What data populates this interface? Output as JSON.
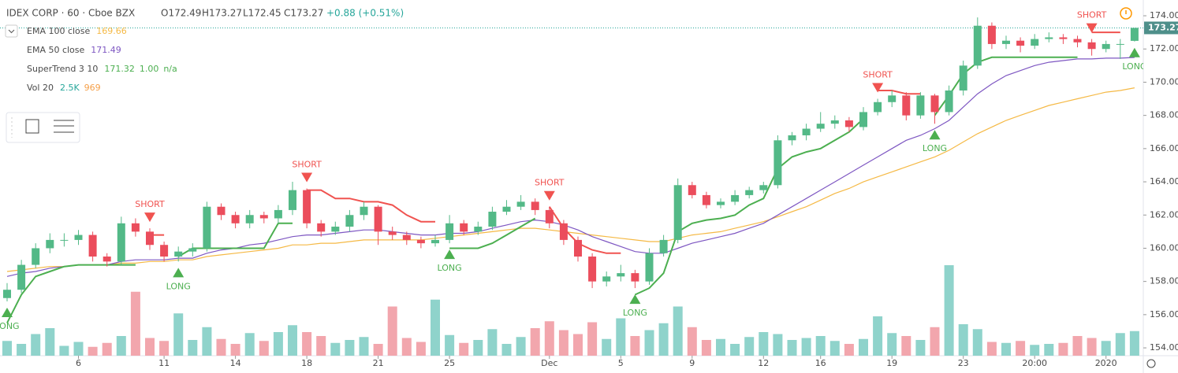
{
  "chart_data": {
    "type": "candlestick",
    "title": "IDEX CORP · 60 · Cboe BZX",
    "ohlc": [
      "O172.49",
      "H173.27",
      "L172.45",
      "C173.27"
    ],
    "change": "+0.88 (+0.51%)",
    "last_price": {
      "value": 173.27,
      "label": "173.27"
    },
    "indicators": [
      {
        "name": "EMA 100 close",
        "values": [
          "169.66"
        ],
        "color": "#f5b945"
      },
      {
        "name": "EMA 50 close",
        "values": [
          "171.49"
        ],
        "color": "#7e57c2"
      },
      {
        "name": "SuperTrend 3 10",
        "values": [
          "171.32",
          "1.00",
          "n/a"
        ],
        "color": "#4caf50"
      },
      {
        "name": "Vol 20",
        "values": [
          "2.5K",
          "969"
        ],
        "color": "#26a69a"
      }
    ],
    "up_color": "#53b987",
    "down_color": "#eb4d5c",
    "vol_up_color": "#8fd3cb",
    "vol_down_color": "#f2a6ad",
    "ylim": [
      152.96,
      174.95
    ],
    "yticks": [
      {
        "value": 154,
        "label": "154.00"
      },
      {
        "value": 156,
        "label": "156.00"
      },
      {
        "value": 158,
        "label": "158.00"
      },
      {
        "value": 160,
        "label": "160.00"
      },
      {
        "value": 162,
        "label": "162.00"
      },
      {
        "value": 164,
        "label": "164.00"
      },
      {
        "value": 166,
        "label": "166.00"
      },
      {
        "value": 168,
        "label": "168.00"
      },
      {
        "value": 170,
        "label": "170.00"
      },
      {
        "value": 172,
        "label": "172.00"
      },
      {
        "value": 174,
        "label": "174.00"
      }
    ],
    "volume_lim": [
      0,
      12000
    ],
    "categories": [
      null,
      null,
      null,
      null,
      null,
      "6",
      null,
      null,
      null,
      null,
      null,
      "11",
      null,
      null,
      null,
      null,
      "14",
      null,
      null,
      null,
      null,
      "18",
      null,
      null,
      null,
      null,
      "21",
      null,
      null,
      null,
      null,
      "25",
      null,
      null,
      null,
      null,
      null,
      null,
      "Dec",
      null,
      null,
      null,
      null,
      "5",
      null,
      null,
      null,
      null,
      "9",
      null,
      null,
      null,
      null,
      "12",
      null,
      null,
      null,
      "16",
      null,
      null,
      null,
      null,
      "19",
      null,
      null,
      null,
      null,
      "23",
      null,
      null,
      null,
      null,
      "20:00",
      null,
      null,
      null,
      null,
      "2020",
      null,
      null
    ],
    "candles": [
      [
        157,
        157.9,
        156.8,
        157.5
      ],
      [
        157.5,
        159.3,
        157.3,
        159
      ],
      [
        159,
        160.3,
        158.8,
        160
      ],
      [
        160,
        160.9,
        159.7,
        160.5
      ],
      [
        160.5,
        160.9,
        160.1,
        160.5
      ],
      [
        160.5,
        161.1,
        160.2,
        160.8
      ],
      [
        160.8,
        161,
        159.2,
        159.5
      ],
      [
        159.5,
        159.7,
        158.9,
        159.2
      ],
      [
        159.2,
        161.9,
        159,
        161.5
      ],
      [
        161.5,
        161.8,
        160.7,
        161
      ],
      [
        161,
        161.2,
        159.9,
        160.2
      ],
      [
        160.2,
        160.4,
        159.2,
        159.5
      ],
      [
        159.5,
        160.1,
        159.2,
        159.8
      ],
      [
        159.8,
        160.3,
        159.5,
        160
      ],
      [
        160,
        162.8,
        159.8,
        162.5
      ],
      [
        162.5,
        162.7,
        161.7,
        162
      ],
      [
        162,
        162.2,
        161.2,
        161.5
      ],
      [
        161.5,
        162.3,
        161.2,
        162
      ],
      [
        162,
        162.2,
        161.5,
        161.8
      ],
      [
        161.8,
        162.6,
        161.5,
        162.3
      ],
      [
        162.3,
        164,
        162,
        163.5
      ],
      [
        163.5,
        163.6,
        161.2,
        161.5
      ],
      [
        161.5,
        161.7,
        160.7,
        161
      ],
      [
        161,
        161.6,
        160.8,
        161.3
      ],
      [
        161.3,
        162.3,
        161,
        162
      ],
      [
        162,
        162.8,
        161.7,
        162.5
      ],
      [
        162.5,
        162.6,
        160.2,
        161
      ],
      [
        161,
        161.3,
        160.5,
        160.8
      ],
      [
        160.8,
        161,
        160.2,
        160.5
      ],
      [
        160.5,
        160.7,
        160,
        160.3
      ],
      [
        160.3,
        160.8,
        160.1,
        160.5
      ],
      [
        160.5,
        162,
        160.3,
        161.5
      ],
      [
        161.5,
        161.7,
        160.8,
        161
      ],
      [
        161,
        161.6,
        160.8,
        161.3
      ],
      [
        161.3,
        162.5,
        161.1,
        162.2
      ],
      [
        162.2,
        162.9,
        162,
        162.5
      ],
      [
        162.5,
        163.2,
        162.3,
        162.8
      ],
      [
        162.8,
        163,
        162,
        162.3
      ],
      [
        162.3,
        162.5,
        161.2,
        161.5
      ],
      [
        161.5,
        161.7,
        160.2,
        160.5
      ],
      [
        160.5,
        160.7,
        159.2,
        159.5
      ],
      [
        159.5,
        159.7,
        157.6,
        158
      ],
      [
        158,
        158.6,
        157.7,
        158.3
      ],
      [
        158.3,
        159,
        158,
        158.5
      ],
      [
        158.5,
        158.7,
        157.6,
        158
      ],
      [
        158,
        160,
        157.8,
        159.7
      ],
      [
        159.7,
        160.8,
        159.5,
        160.5
      ],
      [
        160.5,
        164.2,
        160.3,
        163.8
      ],
      [
        163.8,
        164,
        163,
        163.2
      ],
      [
        163.2,
        163.4,
        162.4,
        162.6
      ],
      [
        162.6,
        163,
        162.4,
        162.8
      ],
      [
        162.8,
        163.5,
        162.6,
        163.2
      ],
      [
        163.2,
        163.7,
        163,
        163.5
      ],
      [
        163.5,
        164,
        163.3,
        163.8
      ],
      [
        163.8,
        166.8,
        163.6,
        166.5
      ],
      [
        166.5,
        167,
        166.2,
        166.8
      ],
      [
        166.8,
        167.5,
        166.5,
        167.2
      ],
      [
        167.2,
        168.2,
        167,
        167.5
      ],
      [
        167.5,
        168,
        167.2,
        167.7
      ],
      [
        167.7,
        167.9,
        167,
        167.3
      ],
      [
        167.3,
        168.5,
        167.1,
        168.2
      ],
      [
        168.2,
        169,
        168,
        168.8
      ],
      [
        168.8,
        169.5,
        168.5,
        169.2
      ],
      [
        169.2,
        169.4,
        167.7,
        168
      ],
      [
        168,
        169.4,
        167.8,
        169.2
      ],
      [
        169.2,
        169.3,
        167.5,
        168.2
      ],
      [
        168.2,
        169.8,
        168,
        169.5
      ],
      [
        169.5,
        171.3,
        169.2,
        171
      ],
      [
        171,
        173.9,
        170.8,
        173.4
      ],
      [
        173.4,
        173.6,
        172,
        172.3
      ],
      [
        172.3,
        172.8,
        172,
        172.5
      ],
      [
        172.5,
        172.7,
        171.8,
        172.2
      ],
      [
        172.2,
        172.9,
        172,
        172.6
      ],
      [
        172.6,
        173,
        172.4,
        172.7
      ],
      [
        172.7,
        172.9,
        172.3,
        172.6
      ],
      [
        172.6,
        172.8,
        172.1,
        172.4
      ],
      [
        172.4,
        172.6,
        171.6,
        172
      ],
      [
        172,
        172.5,
        171.8,
        172.3
      ],
      [
        172.3,
        172.6,
        171.4,
        172.3
      ],
      [
        172.49,
        173.27,
        172.45,
        173.27
      ]
    ],
    "volumes": [
      1500,
      1200,
      2200,
      2800,
      1000,
      1400,
      900,
      1300,
      2000,
      6500,
      1800,
      1500,
      4300,
      1600,
      2900,
      1700,
      1200,
      2300,
      1500,
      2400,
      3100,
      2400,
      2000,
      1300,
      1600,
      1900,
      1200,
      5000,
      1800,
      1400,
      5700,
      2100,
      1300,
      1600,
      2700,
      1200,
      1900,
      2800,
      3500,
      2600,
      2200,
      3400,
      1700,
      3800,
      2000,
      2600,
      3300,
      5000,
      2900,
      1600,
      1700,
      1200,
      1900,
      2400,
      2200,
      1600,
      1800,
      2000,
      1500,
      1200,
      1700,
      4000,
      2300,
      2000,
      1600,
      2900,
      9200,
      3200,
      2700,
      1400,
      1300,
      1500,
      1100,
      1200,
      1300,
      2000,
      1800,
      1500,
      2300,
      2500
    ],
    "ema100": [
      158.6,
      158.7,
      158.8,
      158.9,
      158.9,
      159.0,
      159.0,
      159.0,
      159.1,
      159.1,
      159.2,
      159.2,
      159.3,
      159.3,
      159.5,
      159.6,
      159.7,
      159.8,
      159.9,
      160.0,
      160.2,
      160.2,
      160.3,
      160.3,
      160.4,
      160.5,
      160.5,
      160.5,
      160.5,
      160.5,
      160.6,
      160.7,
      160.8,
      160.9,
      161.0,
      161.1,
      161.2,
      161.2,
      161.1,
      161.0,
      160.9,
      160.8,
      160.7,
      160.6,
      160.5,
      160.4,
      160.4,
      160.6,
      160.8,
      160.9,
      161.0,
      161.2,
      161.4,
      161.6,
      161.9,
      162.2,
      162.5,
      162.9,
      163.3,
      163.6,
      164.0,
      164.3,
      164.6,
      164.9,
      165.2,
      165.5,
      165.9,
      166.4,
      166.9,
      167.3,
      167.7,
      168.0,
      168.3,
      168.6,
      168.8,
      169.0,
      169.2,
      169.4,
      169.5,
      169.66
    ],
    "ema50": [
      158.3,
      158.5,
      158.6,
      158.8,
      158.9,
      159.0,
      159.0,
      159.0,
      159.2,
      159.3,
      159.3,
      159.3,
      159.4,
      159.4,
      159.7,
      159.9,
      160.0,
      160.2,
      160.3,
      160.5,
      160.7,
      160.8,
      160.8,
      160.9,
      161.0,
      161.1,
      161.1,
      161.0,
      160.9,
      160.8,
      160.8,
      160.9,
      160.9,
      161.0,
      161.2,
      161.4,
      161.6,
      161.7,
      161.6,
      161.4,
      161.1,
      160.7,
      160.4,
      160.1,
      159.8,
      159.7,
      159.7,
      160.0,
      160.3,
      160.5,
      160.7,
      160.9,
      161.2,
      161.5,
      162.0,
      162.5,
      163.0,
      163.5,
      164.0,
      164.5,
      165.0,
      165.5,
      166.0,
      166.5,
      166.8,
      167.2,
      167.7,
      168.5,
      169.3,
      169.9,
      170.4,
      170.7,
      171.0,
      171.2,
      171.3,
      171.4,
      171.4,
      171.45,
      171.45,
      171.49
    ],
    "supertrend_long": [
      155.5,
      157.2,
      158.3,
      158.6,
      158.9,
      159.0,
      159.0,
      159.0,
      159.0,
      159.0,
      null,
      null,
      159.5,
      160.0,
      160.0,
      160.0,
      160.0,
      160.0,
      160.0,
      161.5,
      161.5,
      null,
      null,
      null,
      null,
      null,
      null,
      null,
      null,
      null,
      null,
      160.0,
      160.0,
      160.0,
      160.3,
      160.8,
      161.3,
      161.8,
      null,
      null,
      null,
      null,
      null,
      null,
      157.2,
      157.6,
      158.5,
      161.0,
      161.5,
      161.7,
      161.8,
      162.0,
      162.6,
      163.0,
      164.8,
      165.5,
      165.8,
      166.0,
      166.5,
      167.0,
      167.8,
      null,
      null,
      null,
      null,
      168.0,
      169.2,
      170.5,
      171.2,
      171.5,
      171.5,
      171.5,
      171.5,
      171.5,
      171.5,
      171.5,
      null,
      null,
      null,
      171.32
    ],
    "supertrend_short": [
      null,
      null,
      null,
      null,
      null,
      null,
      null,
      null,
      null,
      null,
      160.8,
      160.8,
      null,
      null,
      null,
      null,
      null,
      null,
      null,
      null,
      null,
      163.5,
      163.5,
      163.0,
      163.0,
      162.8,
      162.8,
      162.6,
      162.0,
      161.6,
      161.6,
      null,
      null,
      null,
      null,
      null,
      null,
      null,
      162.5,
      161.2,
      160.3,
      159.9,
      159.7,
      159.7,
      null,
      null,
      null,
      null,
      null,
      null,
      null,
      null,
      null,
      null,
      null,
      null,
      null,
      null,
      null,
      null,
      null,
      169.5,
      169.5,
      169.3,
      169.3,
      null,
      null,
      null,
      null,
      null,
      null,
      null,
      null,
      null,
      null,
      null,
      173.0,
      173.0,
      173.0,
      null
    ],
    "long_color": "#4caf50",
    "short_color": "#f05350",
    "signals": [
      "LONG",
      null,
      null,
      null,
      null,
      null,
      null,
      null,
      null,
      null,
      "SHORT",
      null,
      "LONG",
      null,
      null,
      null,
      null,
      null,
      null,
      null,
      null,
      "SHORT",
      null,
      null,
      null,
      null,
      null,
      null,
      null,
      null,
      null,
      "LONG",
      null,
      null,
      null,
      null,
      null,
      null,
      "SHORT",
      null,
      null,
      null,
      null,
      null,
      "LONG",
      null,
      null,
      null,
      null,
      null,
      null,
      null,
      null,
      null,
      null,
      null,
      null,
      null,
      null,
      null,
      null,
      "SHORT",
      null,
      null,
      null,
      "LONG",
      null,
      null,
      null,
      null,
      null,
      null,
      null,
      null,
      null,
      null,
      "SHORT",
      null,
      null,
      "LONG"
    ]
  }
}
